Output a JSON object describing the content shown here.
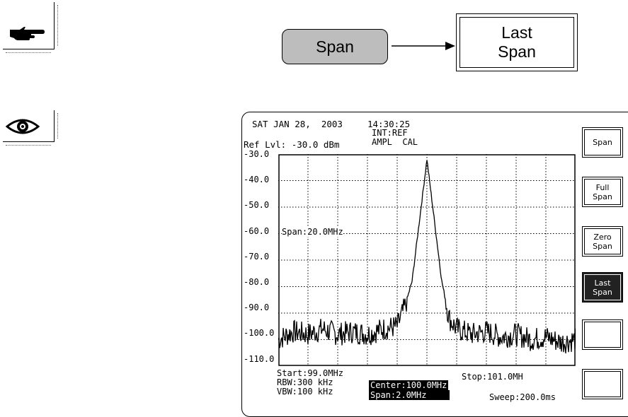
{
  "key_flow": {
    "span_key": "Span",
    "last_span_key_line1": "Last",
    "last_span_key_line2": "Span"
  },
  "icons": {
    "hand": "pointing-hand-icon",
    "eye": "eye-icon"
  },
  "header": {
    "date": "SAT JAN 28,  2003",
    "time": "14:30:25",
    "ref_source": "INT:REF",
    "ampl_cal": "AMPL  CAL",
    "ref_level": "Ref Lvl: -30.0 dBm"
  },
  "y_axis": [
    "-30.0",
    "-40.0",
    "-50.0",
    "-60.0",
    "-70.0",
    "-80.0",
    "-90.0",
    "-100.0",
    "-110.0"
  ],
  "trace_annotation": "Span:20.0MHz",
  "footer": {
    "start": "Start:99.0MHz",
    "rbw": "RBW:300 kHz",
    "vbw": "VBW:100 kHz",
    "center": "Center:100.0MHz",
    "span": "Span:2.0MHz",
    "stop": "Stop:101.0MH",
    "sweep": "Sweep:200.0ms"
  },
  "softkeys": [
    {
      "line1": "Span",
      "line2": ""
    },
    {
      "line1": "Full",
      "line2": "Span"
    },
    {
      "line1": "Zero",
      "line2": "Span"
    },
    {
      "line1": "Last",
      "line2": "Span"
    },
    {
      "line1": "",
      "line2": ""
    },
    {
      "line1": "",
      "line2": ""
    }
  ],
  "active_softkey_index": 3,
  "chart_data": {
    "type": "line",
    "ylim": [
      -110.0,
      -30.0
    ],
    "xlim": [
      99.0,
      101.0
    ],
    "grid": true,
    "series": [
      {
        "x": [
          99.0,
          99.1,
          99.2,
          99.3,
          99.4,
          99.5,
          99.6,
          99.7,
          99.8,
          99.85,
          99.9,
          99.95,
          100.0,
          100.05,
          100.1,
          100.15,
          100.2,
          100.3,
          100.4,
          100.5,
          100.6,
          100.7,
          100.8,
          100.9,
          101.0
        ],
        "y": [
          -100,
          -97,
          -98,
          -96,
          -98,
          -97,
          -98,
          -96,
          -95,
          -88,
          -78,
          -55,
          -32,
          -55,
          -78,
          -92,
          -96,
          -98,
          -97,
          -99,
          -98,
          -100,
          -99,
          -101,
          -100
        ]
      }
    ]
  }
}
